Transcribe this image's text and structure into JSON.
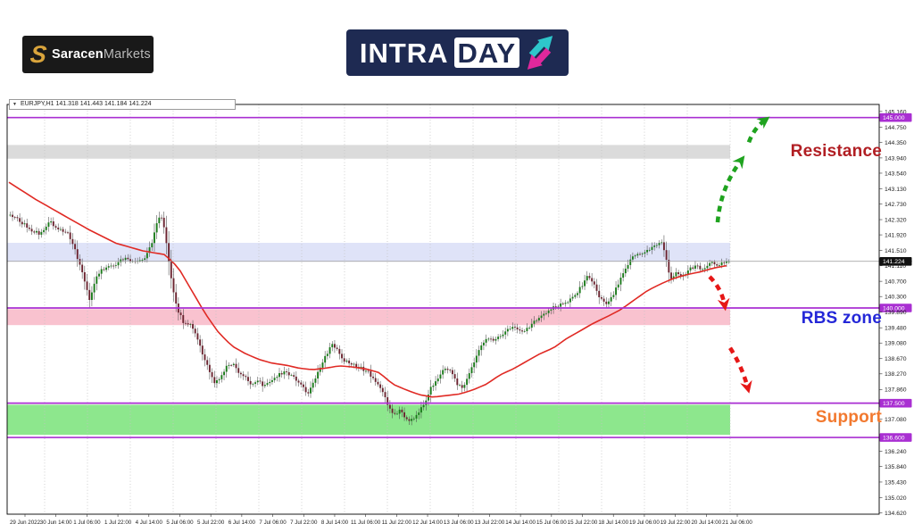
{
  "header": {
    "saracen": {
      "icon": "saracen-s-icon",
      "bold": "Saracen",
      "light": "Markets"
    },
    "intraday": {
      "part1": "INTRA",
      "part2": "DAY",
      "icon": "up-down-trend-arrows-icon"
    }
  },
  "chart": {
    "symbol_info": "EURJPY,H1  141.318 141.443 141.184 141.224",
    "labels": {
      "resistance": "Resistance",
      "rbs_zone": "RBS zone",
      "support": "Support"
    }
  },
  "colors": {
    "resistance_text": "#B11E23",
    "rbs_text": "#2427D8",
    "support_text": "#F2792F",
    "level_line": "#A92FD2",
    "ma_line": "#E02A24",
    "arrow_green": "#1FA31F",
    "arrow_red": "#E61717",
    "candle_up": "#1A7A1A",
    "candle_down": "#6B2430",
    "zone_gray": "#DBDBDB",
    "zone_blue": "#DFE3F8",
    "zone_pink": "#F9C2CF",
    "zone_green": "#8DE78D",
    "saracen_gold": "#D9A43C",
    "intraday_navy": "#1E2A52",
    "intraday_teal": "#2EC6CB",
    "intraday_magenta": "#E0289C",
    "current_price_tag": "#111111"
  },
  "chart_data": {
    "type": "candlestick",
    "symbol": "EURJPY",
    "timeframe": "H1",
    "title": "EURJPY,H1",
    "ohlc": {
      "open": 141.318,
      "high": 141.443,
      "low": 141.184,
      "close": 141.224
    },
    "current_price": "141.224",
    "ylim": [
      134.59,
      145.34
    ],
    "grid": "vertical-dotted",
    "y_ticks": [
      {
        "label": "145.160"
      },
      {
        "label": "145.000",
        "tag": "level"
      },
      {
        "label": "144.750"
      },
      {
        "label": "144.350"
      },
      {
        "label": "143.940"
      },
      {
        "label": "143.540"
      },
      {
        "label": "143.130"
      },
      {
        "label": "142.730"
      },
      {
        "label": "142.320"
      },
      {
        "label": "141.920"
      },
      {
        "label": "141.510"
      },
      {
        "label": "141.224",
        "tag": "price"
      },
      {
        "label": "141.110"
      },
      {
        "label": "140.700"
      },
      {
        "label": "140.300"
      },
      {
        "label": "140.000",
        "tag": "level"
      },
      {
        "label": "139.890"
      },
      {
        "label": "139.480"
      },
      {
        "label": "139.080"
      },
      {
        "label": "138.670"
      },
      {
        "label": "138.270"
      },
      {
        "label": "137.860"
      },
      {
        "label": "137.500",
        "tag": "level"
      },
      {
        "label": "137.080"
      },
      {
        "label": "136.600",
        "tag": "level"
      },
      {
        "label": "136.240"
      },
      {
        "label": "135.840"
      },
      {
        "label": "135.430"
      },
      {
        "label": "135.020"
      },
      {
        "label": "134.620"
      }
    ],
    "x_labels": [
      "29 Jun 2022",
      "30 Jun 14:00",
      "1 Jul 06:00",
      "1 Jul 22:00",
      "4 Jul 14:00",
      "5 Jul 06:00",
      "5 Jul 22:00",
      "6 Jul 14:00",
      "7 Jul 06:00",
      "7 Jul 22:00",
      "8 Jul 14:00",
      "11 Jul 06:00",
      "11 Jul 22:00",
      "12 Jul 14:00",
      "13 Jul 06:00",
      "13 Jul 22:00",
      "14 Jul 14:00",
      "15 Jul 06:00",
      "15 Jul 22:00",
      "18 Jul 14:00",
      "19 Jul 06:00",
      "19 Jul 22:00",
      "20 Jul 14:00",
      "21 Jul 06:00"
    ],
    "levels": [
      145.0,
      140.0,
      137.5,
      136.6
    ],
    "zones": [
      {
        "name": "resistance-zone",
        "color_key": "zone_gray",
        "top": 144.28,
        "bottom": 143.92
      },
      {
        "name": "flip-zone",
        "color_key": "zone_blue",
        "top": 141.71,
        "bottom": 141.22
      },
      {
        "name": "rbs-zone",
        "color_key": "zone_pink",
        "top": 139.97,
        "bottom": 139.55
      },
      {
        "name": "support-zone",
        "color_key": "zone_green",
        "top": 137.46,
        "bottom": 136.67
      }
    ],
    "price_path": [
      [
        10,
        142.45
      ],
      [
        22,
        142.3
      ],
      [
        34,
        142.05
      ],
      [
        45,
        141.95
      ],
      [
        55,
        142.28
      ],
      [
        65,
        142.1
      ],
      [
        75,
        142.0
      ],
      [
        85,
        141.45
      ],
      [
        93,
        140.85
      ],
      [
        100,
        140.2
      ],
      [
        107,
        140.75
      ],
      [
        114,
        141.0
      ],
      [
        122,
        141.1
      ],
      [
        130,
        141.15
      ],
      [
        138,
        141.3
      ],
      [
        146,
        141.25
      ],
      [
        154,
        141.22
      ],
      [
        162,
        141.3
      ],
      [
        170,
        141.7
      ],
      [
        176,
        142.3
      ],
      [
        182,
        142.38
      ],
      [
        187,
        141.6
      ],
      [
        193,
        140.6
      ],
      [
        199,
        139.95
      ],
      [
        205,
        139.65
      ],
      [
        212,
        139.6
      ],
      [
        219,
        139.3
      ],
      [
        226,
        138.85
      ],
      [
        233,
        138.45
      ],
      [
        240,
        137.98
      ],
      [
        247,
        138.2
      ],
      [
        254,
        138.45
      ],
      [
        261,
        138.52
      ],
      [
        268,
        138.3
      ],
      [
        275,
        138.18
      ],
      [
        282,
        137.95
      ],
      [
        289,
        138.1
      ],
      [
        296,
        137.92
      ],
      [
        303,
        138.08
      ],
      [
        310,
        138.22
      ],
      [
        317,
        138.3
      ],
      [
        324,
        138.25
      ],
      [
        331,
        138.15
      ],
      [
        338,
        137.95
      ],
      [
        345,
        137.72
      ],
      [
        352,
        138.1
      ],
      [
        359,
        138.45
      ],
      [
        366,
        138.8
      ],
      [
        372,
        139.08
      ],
      [
        378,
        138.88
      ],
      [
        385,
        138.62
      ],
      [
        392,
        138.55
      ],
      [
        399,
        138.48
      ],
      [
        406,
        138.4
      ],
      [
        413,
        138.3
      ],
      [
        420,
        138.1
      ],
      [
        427,
        137.85
      ],
      [
        434,
        137.5
      ],
      [
        441,
        137.18
      ],
      [
        448,
        137.3
      ],
      [
        455,
        137.1
      ],
      [
        462,
        137.05
      ],
      [
        469,
        137.28
      ],
      [
        476,
        137.55
      ],
      [
        483,
        137.9
      ],
      [
        490,
        138.12
      ],
      [
        497,
        138.45
      ],
      [
        504,
        138.35
      ],
      [
        511,
        138.05
      ],
      [
        518,
        137.88
      ],
      [
        525,
        138.25
      ],
      [
        532,
        138.65
      ],
      [
        539,
        139.0
      ],
      [
        546,
        139.25
      ],
      [
        553,
        139.18
      ],
      [
        560,
        139.28
      ],
      [
        567,
        139.4
      ],
      [
        574,
        139.48
      ],
      [
        581,
        139.45
      ],
      [
        588,
        139.38
      ],
      [
        595,
        139.58
      ],
      [
        602,
        139.72
      ],
      [
        609,
        139.85
      ],
      [
        616,
        139.98
      ],
      [
        623,
        140.05
      ],
      [
        630,
        140.1
      ],
      [
        637,
        140.2
      ],
      [
        644,
        140.32
      ],
      [
        651,
        140.55
      ],
      [
        658,
        140.88
      ],
      [
        665,
        140.65
      ],
      [
        672,
        140.28
      ],
      [
        679,
        140.05
      ],
      [
        686,
        140.3
      ],
      [
        693,
        140.65
      ],
      [
        700,
        141.0
      ],
      [
        707,
        141.28
      ],
      [
        714,
        141.42
      ],
      [
        721,
        141.48
      ],
      [
        728,
        141.55
      ],
      [
        735,
        141.65
      ],
      [
        741,
        141.7
      ],
      [
        746,
        141.35
      ],
      [
        751,
        140.78
      ],
      [
        757,
        140.92
      ],
      [
        763,
        140.8
      ],
      [
        769,
        140.95
      ],
      [
        775,
        141.05
      ],
      [
        781,
        141.1
      ],
      [
        787,
        141.02
      ],
      [
        793,
        141.15
      ],
      [
        799,
        141.2
      ],
      [
        805,
        141.12
      ],
      [
        811,
        141.2
      ],
      [
        818,
        141.22
      ]
    ],
    "ma_line": [
      [
        10,
        143.3
      ],
      [
        40,
        142.85
      ],
      [
        70,
        142.45
      ],
      [
        100,
        142.05
      ],
      [
        130,
        141.7
      ],
      [
        160,
        141.5
      ],
      [
        185,
        141.4
      ],
      [
        200,
        141.05
      ],
      [
        215,
        140.45
      ],
      [
        230,
        139.85
      ],
      [
        245,
        139.35
      ],
      [
        260,
        139.0
      ],
      [
        275,
        138.8
      ],
      [
        290,
        138.65
      ],
      [
        305,
        138.55
      ],
      [
        320,
        138.5
      ],
      [
        335,
        138.42
      ],
      [
        350,
        138.38
      ],
      [
        365,
        138.42
      ],
      [
        380,
        138.48
      ],
      [
        395,
        138.45
      ],
      [
        410,
        138.4
      ],
      [
        425,
        138.3
      ],
      [
        440,
        138.0
      ],
      [
        455,
        137.85
      ],
      [
        470,
        137.72
      ],
      [
        485,
        137.66
      ],
      [
        500,
        137.7
      ],
      [
        515,
        137.74
      ],
      [
        530,
        137.85
      ],
      [
        545,
        138.0
      ],
      [
        560,
        138.24
      ],
      [
        575,
        138.4
      ],
      [
        590,
        138.6
      ],
      [
        605,
        138.8
      ],
      [
        620,
        138.95
      ],
      [
        635,
        139.2
      ],
      [
        650,
        139.4
      ],
      [
        665,
        139.6
      ],
      [
        680,
        139.77
      ],
      [
        695,
        139.95
      ],
      [
        710,
        140.2
      ],
      [
        725,
        140.45
      ],
      [
        740,
        140.63
      ],
      [
        755,
        140.78
      ],
      [
        770,
        140.88
      ],
      [
        785,
        140.95
      ],
      [
        800,
        141.05
      ],
      [
        818,
        141.13
      ]
    ],
    "arrows": [
      {
        "name": "bullish-breakout-arrow",
        "color_key": "arrow_green",
        "from": [
          804,
          142.25
        ],
        "to": [
          831,
          143.9
        ],
        "bend": -11
      },
      {
        "name": "bullish-continuation-arrow",
        "color_key": "arrow_green",
        "from": [
          839,
          144.35
        ],
        "to": [
          858,
          144.95
        ],
        "bend": -5
      },
      {
        "name": "bearish-pullback-arrow",
        "color_key": "arrow_red",
        "from": [
          795,
          140.82
        ],
        "to": [
          812,
          140.05
        ],
        "bend": -6
      },
      {
        "name": "bearish-drop-arrow",
        "color_key": "arrow_red",
        "from": [
          818,
          138.95
        ],
        "to": [
          838,
          137.88
        ],
        "bend": -4
      }
    ]
  }
}
